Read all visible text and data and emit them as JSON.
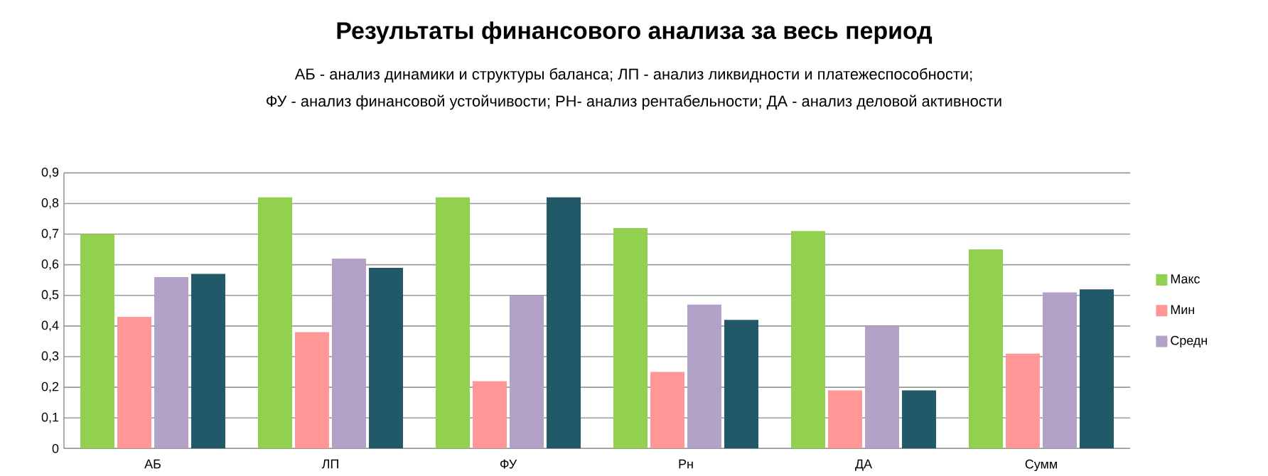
{
  "chart_data": {
    "type": "bar",
    "title": "Результаты финансового анализа за весь период",
    "subtitle": "АБ - анализ динамики и структуры баланса;  ЛП - анализ ликвидности и платежеспособности;",
    "annotations": [
      "ФУ - анализ финансовой устойчивости; РН- анализ рентабельности; ДА - анализ деловой активности"
    ],
    "categories": [
      "АБ",
      "ЛП",
      "ФУ",
      "Рн",
      "ДА",
      "Сумм"
    ],
    "series": [
      {
        "name": "Макс",
        "color": "#92d050",
        "values": [
          0.7,
          0.82,
          0.82,
          0.72,
          0.71,
          0.65
        ]
      },
      {
        "name": "Мин",
        "color": "#ff9797",
        "values": [
          0.43,
          0.38,
          0.22,
          0.25,
          0.19,
          0.31
        ]
      },
      {
        "name": "Средн",
        "color": "#b2a2c7",
        "values": [
          0.56,
          0.62,
          0.5,
          0.47,
          0.4,
          0.51
        ]
      },
      {
        "color": "#215968",
        "values": [
          0.57,
          0.59,
          0.82,
          0.42,
          0.19,
          0.52
        ]
      }
    ],
    "ylim": [
      0,
      0.9
    ],
    "yticks": [
      0,
      {
        "value": 0.1,
        "label": "0,1"
      },
      {
        "value": 0.2,
        "label": "0,2"
      },
      {
        "value": 0.3,
        "label": "0,3"
      },
      {
        "value": 0.4,
        "label": "0,4"
      },
      {
        "value": 0.5,
        "label": "0,5"
      },
      {
        "value": 0.6,
        "label": "0,6"
      },
      {
        "value": 0.7,
        "label": "0,7"
      },
      {
        "value": 0.8,
        "label": "0,8"
      },
      {
        "value": 0.9,
        "label": "0,9"
      }
    ],
    "grid": "y",
    "legend": "right"
  }
}
